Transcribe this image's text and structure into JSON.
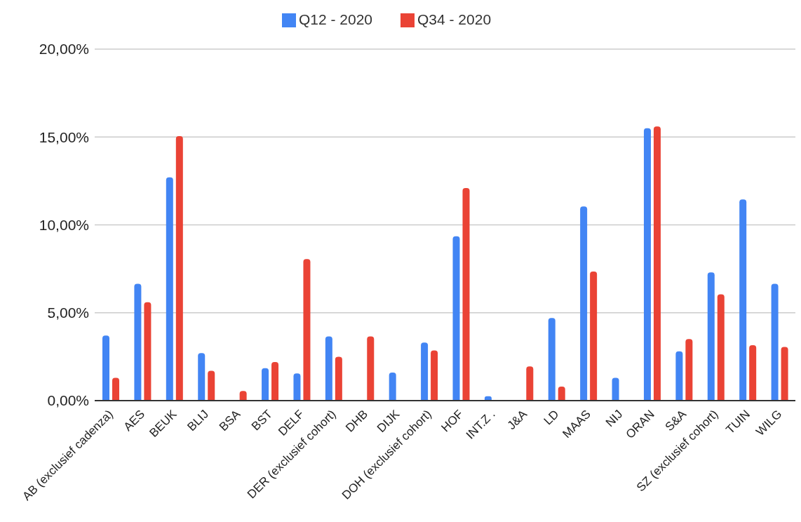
{
  "chart_data": {
    "type": "bar",
    "categories": [
      "AB (exclusief cadenza)",
      "AES",
      "BEUK",
      "BLIJ",
      "BSA",
      "BST",
      "DELF",
      "DER (exclusief cohort)",
      "DHB",
      "DIJK",
      "DOH (exclusief cohort)",
      "HOF",
      "INT.Z .",
      "J&A",
      "LD",
      "MAAS",
      "NIJ",
      "ORAN",
      "S&A",
      "SZ (exclusief cohort)",
      "TUIN",
      "WILG"
    ],
    "series": [
      {
        "name": "Q12 - 2020",
        "color": "#4285f4",
        "values": [
          3.7,
          6.65,
          12.7,
          2.7,
          null,
          1.85,
          1.55,
          3.65,
          null,
          1.6,
          3.3,
          9.35,
          0.25,
          null,
          4.7,
          11.05,
          1.3,
          15.5,
          2.8,
          7.3,
          11.45,
          6.65
        ]
      },
      {
        "name": "Q34 - 2020",
        "color": "#ea4335",
        "values": [
          1.3,
          5.6,
          15.05,
          1.7,
          0.55,
          2.2,
          8.05,
          2.5,
          3.65,
          null,
          2.85,
          12.1,
          null,
          1.95,
          0.8,
          7.35,
          null,
          15.6,
          3.5,
          6.05,
          3.15,
          3.05
        ]
      }
    ],
    "ylim": [
      0,
      20
    ],
    "yticks": [
      {
        "value": 0,
        "label": "0,00%"
      },
      {
        "value": 5,
        "label": "5,00%"
      },
      {
        "value": 10,
        "label": "10,00%"
      },
      {
        "value": 15,
        "label": "15,00%"
      },
      {
        "value": 20,
        "label": "20,00%"
      }
    ],
    "grid": "y",
    "legend": "top"
  }
}
